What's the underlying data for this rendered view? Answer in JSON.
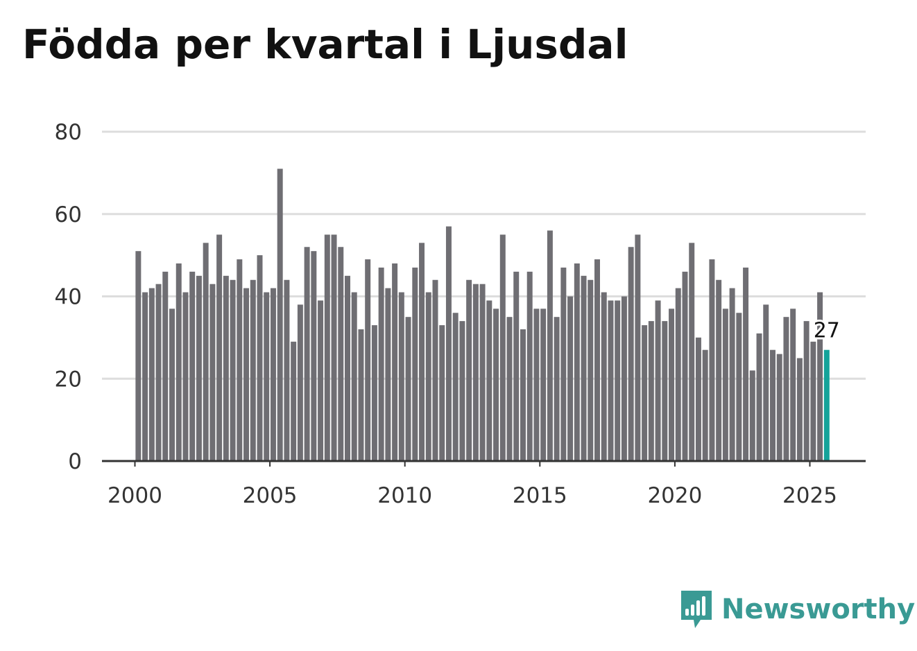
{
  "title": "Födda per kvartal i Ljusdal",
  "brand": {
    "name": "Newsworthy",
    "color": "#3a9a94",
    "icon": "bar-chart-bubble-icon"
  },
  "colors": {
    "bar": "#6f6e73",
    "highlight": "#14a39a",
    "grid": "#dddddd",
    "axis": "#333333"
  },
  "chart_data": {
    "type": "bar",
    "title": "Födda per kvartal i Ljusdal",
    "xlabel": "",
    "ylabel": "",
    "ylim": [
      0,
      80
    ],
    "yticks": [
      0,
      20,
      40,
      60,
      80
    ],
    "xticks": [
      "2000",
      "2005",
      "2010",
      "2015",
      "2020",
      "2025"
    ],
    "start_year": 2000,
    "periods_per_year": 4,
    "x_range": [
      2000,
      2027
    ],
    "highlight_last": true,
    "highlight_label": "27",
    "values": [
      51,
      41,
      42,
      43,
      46,
      37,
      48,
      41,
      46,
      45,
      53,
      43,
      55,
      45,
      44,
      49,
      42,
      44,
      50,
      41,
      42,
      71,
      44,
      29,
      38,
      52,
      51,
      39,
      55,
      55,
      52,
      45,
      41,
      32,
      49,
      33,
      47,
      42,
      48,
      41,
      35,
      47,
      53,
      41,
      44,
      33,
      57,
      36,
      34,
      44,
      43,
      43,
      39,
      37,
      55,
      35,
      46,
      32,
      46,
      37,
      37,
      56,
      35,
      47,
      40,
      48,
      45,
      44,
      49,
      41,
      39,
      39,
      40,
      52,
      55,
      33,
      34,
      39,
      34,
      37,
      42,
      46,
      53,
      30,
      27,
      49,
      44,
      37,
      42,
      36,
      47,
      22,
      31,
      38,
      27,
      26,
      35,
      37,
      25,
      34,
      29,
      41,
      27
    ]
  }
}
